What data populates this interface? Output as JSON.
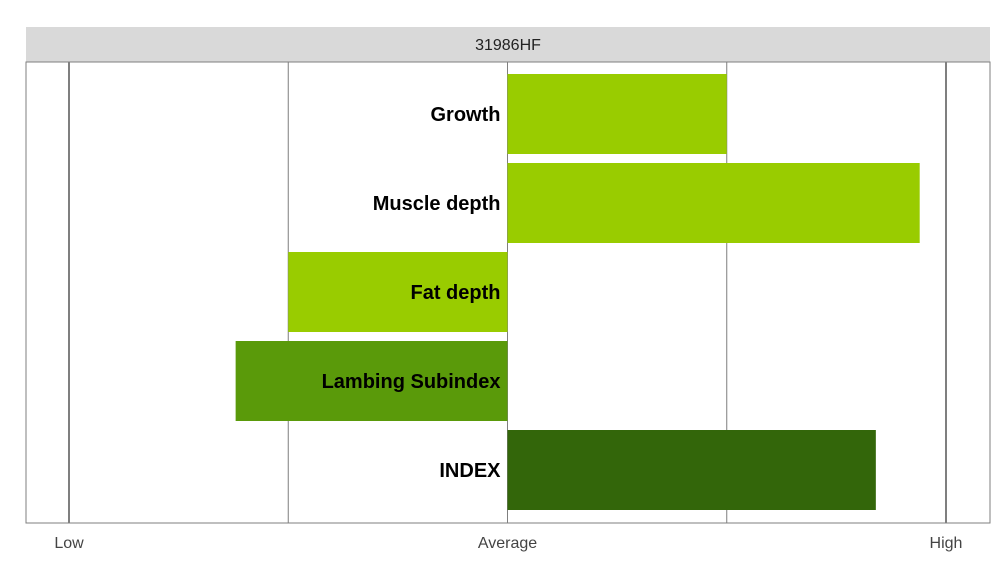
{
  "chart_data": {
    "type": "bar",
    "orientation": "horizontal",
    "title": "31986HF",
    "xlabel": "",
    "ylabel": "",
    "xlim": [
      -1,
      1
    ],
    "ticks": [
      {
        "value": -1,
        "label": "Low"
      },
      {
        "value": 0,
        "label": "Average"
      },
      {
        "value": 1,
        "label": "High"
      }
    ],
    "gridlines": [
      -1,
      -0.5,
      0,
      0.5,
      1
    ],
    "grid": true,
    "legend": "none",
    "categories": [
      "Growth",
      "Muscle depth",
      "Fat depth",
      "Lambing Subindex",
      "INDEX"
    ],
    "values": [
      0.5,
      0.94,
      -0.5,
      -0.62,
      0.84
    ],
    "colors": [
      "#99cc00",
      "#99cc00",
      "#99cc00",
      "#5a9a0a",
      "#33660a"
    ]
  },
  "colors": {
    "title_strip": "#d9d9d9",
    "panel_border": "#7f7f7f",
    "gridline": "#7f7f7f"
  }
}
